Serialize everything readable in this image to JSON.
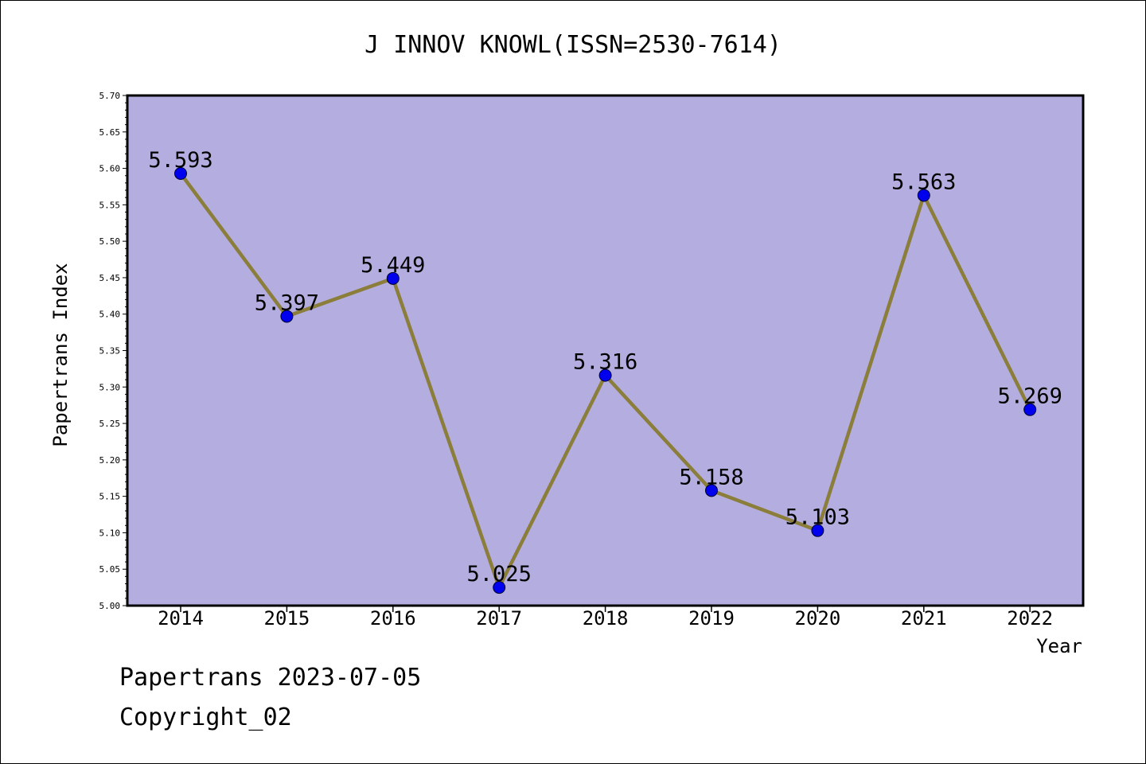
{
  "chart_data": {
    "type": "line",
    "title": "J INNOV KNOWL(ISSN=2530-7614)",
    "xlabel": "Year",
    "ylabel": "Papertrans Index",
    "categories": [
      "2014",
      "2015",
      "2016",
      "2017",
      "2018",
      "2019",
      "2020",
      "2021",
      "2022"
    ],
    "values": [
      5.593,
      5.397,
      5.449,
      5.025,
      5.316,
      5.158,
      5.103,
      5.563,
      5.269
    ],
    "data_labels": [
      "5.593",
      "5.397",
      "5.449",
      "5.025",
      "5.316",
      "5.158",
      "5.103",
      "5.563",
      "5.269"
    ],
    "ylim": [
      5.0,
      5.7
    ],
    "yticks": [
      "5.00",
      "5.05",
      "5.10",
      "5.15",
      "5.20",
      "5.25",
      "5.30",
      "5.35",
      "5.40",
      "5.45",
      "5.50",
      "5.55",
      "5.60",
      "5.65",
      "5.70"
    ],
    "grid": false,
    "colors": {
      "plot_background": "#b4aee0",
      "line": "#8b7d3a",
      "marker": "#0000ee"
    }
  },
  "footer": {
    "line1": "Papertrans 2023-07-05",
    "line2": "Copyright_02"
  }
}
